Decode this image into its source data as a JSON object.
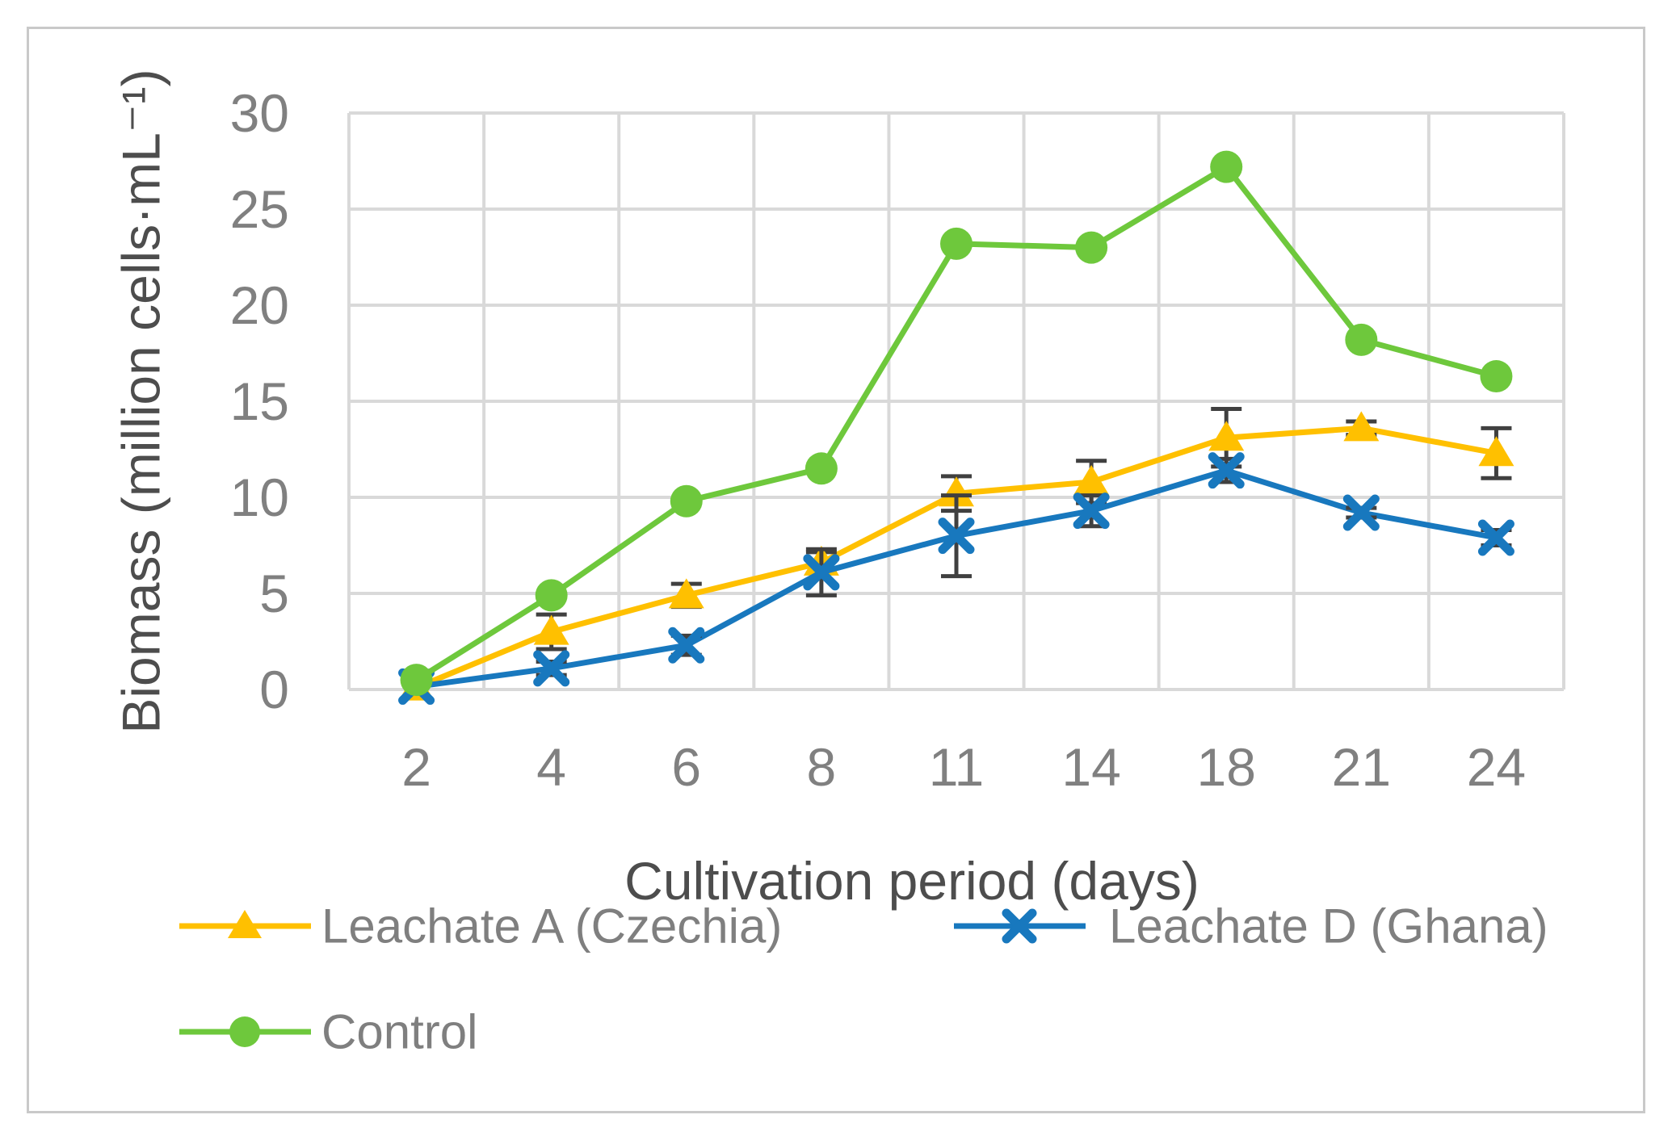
{
  "style": {
    "series_green": "#6ec83c",
    "series_yellow": "#ffc000",
    "series_blue": "#1878be",
    "error_bar_color": "#404040",
    "gridline_color": "#d9d9d9",
    "tick_label_color": "#808080",
    "axis_title_color": "#4d4d4d",
    "legend_text_color": "#7f7f7f",
    "frame_border_color": "#c9c9c9"
  },
  "chart_data": {
    "type": "line",
    "title": "",
    "xlabel": "Cultivation period (days)",
    "ylabel": "Biomass (million cells·mL⁻¹)",
    "categories": [
      2,
      4,
      6,
      8,
      11,
      14,
      18,
      21,
      24
    ],
    "ylim": [
      0,
      30
    ],
    "y_ticks": [
      0,
      5,
      10,
      15,
      20,
      25,
      30
    ],
    "grid": true,
    "legend_position": "bottom",
    "series": [
      {
        "name": "Leachate A (Czechia)",
        "color": "#ffc000",
        "marker": "triangle",
        "values": [
          0.1,
          3.0,
          4.9,
          6.6,
          10.2,
          10.8,
          13.1,
          13.6,
          12.3
        ],
        "error": [
          0,
          0.9,
          0.6,
          0.55,
          0.9,
          1.1,
          1.5,
          0.35,
          1.3
        ]
      },
      {
        "name": "Leachate D (Ghana)",
        "color": "#1878be",
        "marker": "x",
        "values": [
          0.15,
          1.1,
          2.3,
          6.1,
          8.0,
          9.3,
          11.4,
          9.2,
          7.9
        ],
        "error": [
          0,
          0.35,
          0.5,
          1.2,
          2.1,
          0.8,
          0.6,
          0.25,
          0.4
        ]
      },
      {
        "name": "Control",
        "color": "#6ec83c",
        "marker": "circle",
        "values": [
          0.5,
          4.9,
          9.8,
          11.5,
          23.2,
          23.0,
          27.2,
          18.2,
          16.3
        ],
        "error": [
          0,
          0,
          0,
          0,
          0,
          0,
          0,
          0,
          0
        ]
      }
    ],
    "error_bar_color": "#404040"
  },
  "legend": {
    "items": [
      {
        "label": "Leachate A (Czechia)"
      },
      {
        "label": "Leachate D (Ghana)"
      },
      {
        "label": "Control"
      }
    ]
  }
}
